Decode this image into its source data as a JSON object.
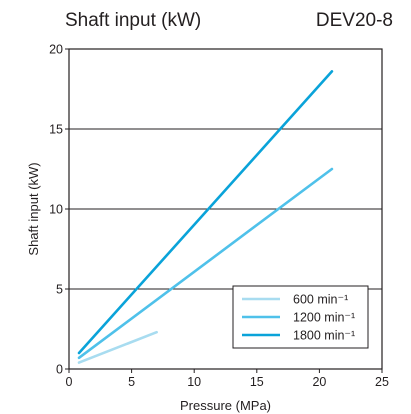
{
  "header": {
    "title": "Shaft input (kW)",
    "model": "DEV20-8"
  },
  "chart_data": {
    "type": "line",
    "xlabel": "Pressure (MPa)",
    "ylabel": "Shaft input (kW)",
    "xlim": [
      0,
      25
    ],
    "ylim": [
      0,
      20
    ],
    "xticks": [
      "0",
      "5",
      "10",
      "15",
      "20",
      "25"
    ],
    "yticks": [
      "0",
      "5",
      "10",
      "15",
      "20"
    ],
    "grid": "horizontal",
    "legend_position": "bottom-right",
    "series": [
      {
        "name": "600 min⁻¹",
        "color": "#a8dcf0",
        "x": [
          0.8,
          7
        ],
        "y": [
          0.4,
          2.3
        ]
      },
      {
        "name": "1200 min⁻¹",
        "color": "#4fc1ea",
        "x": [
          0.8,
          21
        ],
        "y": [
          0.7,
          12.5
        ]
      },
      {
        "name": "1800 min⁻¹",
        "color": "#0aa3d9",
        "x": [
          0.8,
          21
        ],
        "y": [
          1.0,
          18.6
        ]
      }
    ]
  }
}
